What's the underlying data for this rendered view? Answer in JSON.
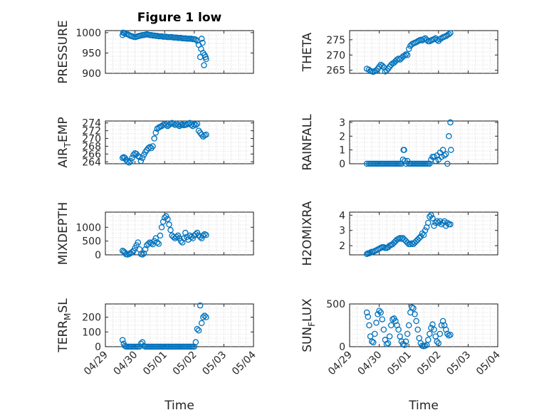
{
  "figure": {
    "title": "Figure 1 low",
    "xlabel": "Time",
    "marker_color": "#0072BD"
  },
  "chart_data": [
    {
      "type": "scatter",
      "ylabel": "PRESSURE",
      "yticks": [
        "900",
        "950",
        "1000"
      ],
      "ylim": [
        900,
        1005
      ],
      "grid": true,
      "x_day": [
        0.58,
        0.6,
        0.62,
        0.65,
        0.7,
        0.75,
        0.8,
        0.85,
        0.9,
        0.95,
        1.0,
        1.05,
        1.1,
        1.15,
        1.2,
        1.25,
        1.3,
        1.35,
        1.4,
        1.45,
        1.5,
        1.55,
        1.6,
        1.65,
        1.7,
        1.75,
        1.8,
        1.85,
        1.9,
        1.95,
        2.0,
        2.05,
        2.1,
        2.15,
        2.2,
        2.25,
        2.3,
        2.35,
        2.4,
        2.45,
        2.5,
        2.55,
        2.6,
        2.65,
        2.7,
        2.75,
        2.8,
        2.85,
        2.9,
        2.95,
        3.0,
        3.05,
        3.1,
        3.15,
        3.2,
        3.23,
        3.25,
        3.28,
        3.3,
        3.33,
        3.35,
        3.38,
        3.4
      ],
      "y": [
        994,
        1000,
        999,
        998,
        997,
        996,
        994,
        992,
        991,
        990,
        989,
        990,
        991,
        992,
        993,
        994,
        994,
        995,
        996,
        995,
        994,
        994,
        993,
        993,
        992,
        992,
        991,
        991,
        991,
        990,
        990,
        990,
        989,
        989,
        989,
        989,
        988,
        988,
        988,
        987,
        987,
        987,
        986,
        986,
        986,
        985,
        985,
        985,
        985,
        984,
        984,
        983,
        980,
        970,
        940,
        960,
        985,
        975,
        950,
        920,
        945,
        940,
        935
      ]
    },
    {
      "type": "scatter",
      "ylabel": "THETA",
      "yticks": [
        "265",
        "270",
        "275"
      ],
      "ylim": [
        264,
        278
      ],
      "grid": true,
      "x_day": [
        0.58,
        0.65,
        0.7,
        0.75,
        0.8,
        0.85,
        0.9,
        0.95,
        1.0,
        1.05,
        1.1,
        1.15,
        1.2,
        1.25,
        1.3,
        1.35,
        1.4,
        1.45,
        1.5,
        1.55,
        1.6,
        1.65,
        1.7,
        1.75,
        1.8,
        1.85,
        1.9,
        1.95,
        2.0,
        2.05,
        2.1,
        2.15,
        2.2,
        2.25,
        2.3,
        2.35,
        2.4,
        2.45,
        2.5,
        2.55,
        2.6,
        2.65,
        2.7,
        2.75,
        2.8,
        2.85,
        2.9,
        2.95,
        3.0,
        3.05,
        3.1,
        3.15,
        3.2,
        3.25,
        3.3,
        3.35,
        3.4
      ],
      "y": [
        265.5,
        265.2,
        264.8,
        264.6,
        264.5,
        264.7,
        265.0,
        265.5,
        266.2,
        266.8,
        266.5,
        266.0,
        264.6,
        265.0,
        265.5,
        266.2,
        266.8,
        267.2,
        267.5,
        268.0,
        268.5,
        268.8,
        268.5,
        269.0,
        269.5,
        269.8,
        270.2,
        270.0,
        272.0,
        273.0,
        273.5,
        273.8,
        274.0,
        274.2,
        274.5,
        274.8,
        275.0,
        274.8,
        275.2,
        275.5,
        275.0,
        274.5,
        274.5,
        274.8,
        275.0,
        275.2,
        275.5,
        275.0,
        274.6,
        275.2,
        275.5,
        275.8,
        276.0,
        276.2,
        276.5,
        276.8,
        277.2
      ]
    },
    {
      "type": "scatter",
      "ylabel_main": "AIR",
      "ylabel_sub": "T",
      "ylabel_tail": "EMP",
      "yticks": [
        "264",
        "266",
        "268",
        "270",
        "272",
        "274"
      ],
      "ylim": [
        263.5,
        274.5
      ],
      "grid": true,
      "x_day": [
        0.58,
        0.62,
        0.66,
        0.7,
        0.75,
        0.8,
        0.85,
        0.9,
        0.95,
        1.0,
        1.05,
        1.1,
        1.15,
        1.2,
        1.25,
        1.3,
        1.35,
        1.4,
        1.45,
        1.5,
        1.55,
        1.6,
        1.65,
        1.7,
        1.75,
        1.8,
        1.85,
        1.9,
        1.95,
        2.0,
        2.05,
        2.1,
        2.15,
        2.2,
        2.25,
        2.3,
        2.35,
        2.4,
        2.45,
        2.5,
        2.55,
        2.6,
        2.65,
        2.7,
        2.75,
        2.8,
        2.85,
        2.9,
        2.95,
        3.0,
        3.05,
        3.1,
        3.15,
        3.2,
        3.25,
        3.3,
        3.35,
        3.4
      ],
      "y": [
        265,
        265.2,
        265,
        264.5,
        264,
        263.8,
        264.2,
        265,
        265.8,
        266.2,
        266,
        265.5,
        265.2,
        264.2,
        265,
        265.8,
        266.5,
        267,
        267.5,
        267.8,
        267.5,
        268,
        270,
        271.5,
        272.5,
        272.8,
        273,
        273.2,
        273.5,
        273.8,
        273.5,
        273.2,
        273.5,
        273.8,
        274,
        273.8,
        273.5,
        273.8,
        273.5,
        273.2,
        273.5,
        273.6,
        273.4,
        273.5,
        273.6,
        273.8,
        274,
        273.5,
        273.2,
        273.6,
        273.5,
        273.8,
        272,
        271.5,
        271,
        270.5,
        270.8,
        271
      ]
    },
    {
      "type": "scatter",
      "ylabel": "RAINFALL",
      "yticks": [
        "0",
        "1",
        "2",
        "3"
      ],
      "ylim": [
        0,
        3.1
      ],
      "grid": true,
      "x_day": [
        0.58,
        0.65,
        0.7,
        0.75,
        0.8,
        0.85,
        0.9,
        0.95,
        1.0,
        1.05,
        1.1,
        1.15,
        1.2,
        1.25,
        1.3,
        1.35,
        1.4,
        1.45,
        1.5,
        1.55,
        1.6,
        1.65,
        1.7,
        1.75,
        1.8,
        1.82,
        1.84,
        1.86,
        1.9,
        1.95,
        2.0,
        2.05,
        2.1,
        2.15,
        2.2,
        2.25,
        2.3,
        2.35,
        2.4,
        2.45,
        2.5,
        2.55,
        2.6,
        2.65,
        2.7,
        2.75,
        2.8,
        2.85,
        2.9,
        2.95,
        3.0,
        3.05,
        3.1,
        3.15,
        3.2,
        3.25,
        3.3,
        3.35,
        3.4,
        3.42
      ],
      "y": [
        0,
        0,
        0,
        0,
        0,
        0,
        0,
        0,
        0,
        0,
        0,
        0,
        0,
        0,
        0,
        0,
        0,
        0,
        0,
        0,
        0,
        0,
        0,
        0,
        0.3,
        1.0,
        1.0,
        0.2,
        0,
        0.2,
        0,
        0,
        0,
        0,
        0,
        0,
        0,
        0,
        0,
        0,
        0,
        0,
        0,
        0,
        0,
        0.3,
        0.5,
        0.5,
        0.2,
        0.6,
        0.3,
        0.8,
        0.5,
        1.0,
        0.6,
        0.7,
        0,
        2.0,
        3.0,
        1.0
      ]
    },
    {
      "type": "scatter",
      "ylabel": "MIXDEPTH",
      "yticks": [
        "0",
        "500",
        "1000"
      ],
      "ylim": [
        0,
        1550
      ],
      "grid": true,
      "x_day": [
        0.58,
        0.62,
        0.66,
        0.7,
        0.75,
        0.8,
        0.85,
        0.9,
        0.95,
        1.0,
        1.05,
        1.1,
        1.15,
        1.2,
        1.25,
        1.3,
        1.35,
        1.4,
        1.45,
        1.5,
        1.55,
        1.6,
        1.65,
        1.7,
        1.75,
        1.8,
        1.85,
        1.9,
        1.95,
        2.0,
        2.05,
        2.1,
        2.15,
        2.2,
        2.25,
        2.3,
        2.35,
        2.4,
        2.45,
        2.5,
        2.55,
        2.6,
        2.65,
        2.7,
        2.75,
        2.8,
        2.85,
        2.9,
        2.95,
        3.0,
        3.05,
        3.1,
        3.15,
        3.2,
        3.25,
        3.3,
        3.35,
        3.4
      ],
      "y": [
        150,
        120,
        80,
        20,
        10,
        30,
        60,
        100,
        150,
        250,
        350,
        450,
        200,
        30,
        10,
        50,
        200,
        350,
        400,
        450,
        420,
        380,
        500,
        600,
        450,
        400,
        700,
        1000,
        1200,
        1350,
        1400,
        1300,
        1100,
        900,
        700,
        650,
        600,
        650,
        700,
        600,
        500,
        450,
        600,
        800,
        650,
        550,
        700,
        650,
        600,
        700,
        750,
        800,
        700,
        650,
        600,
        700,
        750,
        720
      ]
    },
    {
      "type": "scatter",
      "ylabel": "H2OMIXRA",
      "yticks": [
        "2",
        "3",
        "4"
      ],
      "ylim": [
        1.4,
        4.2
      ],
      "grid": true,
      "x_day": [
        0.58,
        0.62,
        0.66,
        0.7,
        0.75,
        0.8,
        0.85,
        0.9,
        0.95,
        1.0,
        1.05,
        1.1,
        1.15,
        1.2,
        1.25,
        1.3,
        1.35,
        1.4,
        1.45,
        1.5,
        1.55,
        1.6,
        1.65,
        1.7,
        1.75,
        1.8,
        1.85,
        1.9,
        1.95,
        2.0,
        2.05,
        2.1,
        2.15,
        2.2,
        2.25,
        2.3,
        2.35,
        2.4,
        2.45,
        2.5,
        2.55,
        2.6,
        2.65,
        2.7,
        2.75,
        2.8,
        2.85,
        2.9,
        2.95,
        3.0,
        3.05,
        3.1,
        3.15,
        3.2,
        3.25,
        3.3,
        3.35,
        3.4
      ],
      "y": [
        1.45,
        1.5,
        1.5,
        1.55,
        1.6,
        1.6,
        1.65,
        1.7,
        1.75,
        1.8,
        1.85,
        1.9,
        1.9,
        1.85,
        1.85,
        1.9,
        2.0,
        2.05,
        2.1,
        2.2,
        2.3,
        2.4,
        2.45,
        2.5,
        2.45,
        2.5,
        2.4,
        2.3,
        2.2,
        2.1,
        2.1,
        2.15,
        2.1,
        2.2,
        2.3,
        2.4,
        2.5,
        2.6,
        2.8,
        2.7,
        3.0,
        3.2,
        3.5,
        3.9,
        4.0,
        3.8,
        3.3,
        3.5,
        3.6,
        3.5,
        3.6,
        3.4,
        3.5,
        3.6,
        3.3,
        3.5,
        3.4,
        3.4
      ]
    },
    {
      "type": "scatter",
      "ylabel_main": "TERR",
      "ylabel_sub": "M",
      "ylabel_tail": "SL",
      "yticks": [
        "0",
        "100",
        "200"
      ],
      "ylim": [
        0,
        290
      ],
      "grid": true,
      "x_day": [
        0.58,
        0.62,
        0.66,
        0.7,
        0.75,
        0.8,
        0.85,
        0.9,
        0.95,
        1.0,
        1.05,
        1.1,
        1.15,
        1.2,
        1.25,
        1.3,
        1.35,
        1.4,
        1.45,
        1.5,
        1.55,
        1.6,
        1.65,
        1.7,
        1.75,
        1.8,
        1.85,
        1.9,
        1.95,
        2.0,
        2.05,
        2.1,
        2.15,
        2.2,
        2.25,
        2.3,
        2.35,
        2.4,
        2.45,
        2.5,
        2.55,
        2.6,
        2.65,
        2.7,
        2.75,
        2.8,
        2.85,
        2.9,
        2.95,
        3.0,
        3.05,
        3.1,
        3.15,
        3.2,
        3.25,
        3.3,
        3.35,
        3.4
      ],
      "y": [
        45,
        20,
        5,
        0,
        0,
        0,
        0,
        0,
        0,
        0,
        0,
        0,
        0,
        20,
        30,
        5,
        0,
        0,
        0,
        0,
        0,
        0,
        0,
        0,
        0,
        0,
        0,
        0,
        0,
        0,
        0,
        0,
        0,
        0,
        0,
        0,
        0,
        0,
        0,
        0,
        0,
        0,
        0,
        0,
        0,
        0,
        0,
        0,
        0,
        0,
        30,
        120,
        110,
        280,
        160,
        200,
        210,
        200
      ]
    },
    {
      "type": "scatter",
      "ylabel_main": "SUN",
      "ylabel_sub": "F",
      "ylabel_tail": "LUX",
      "yticks": [
        "0",
        "500"
      ],
      "ylim": [
        0,
        500
      ],
      "grid": true,
      "x_day": [
        0.58,
        0.62,
        0.66,
        0.7,
        0.75,
        0.8,
        0.85,
        0.9,
        0.95,
        1.0,
        1.05,
        1.1,
        1.15,
        1.2,
        1.25,
        1.3,
        1.35,
        1.4,
        1.45,
        1.5,
        1.55,
        1.6,
        1.65,
        1.7,
        1.75,
        1.8,
        1.85,
        1.9,
        1.95,
        2.0,
        2.05,
        2.1,
        2.15,
        2.2,
        2.25,
        2.3,
        2.35,
        2.4,
        2.45,
        2.5,
        2.55,
        2.6,
        2.65,
        2.7,
        2.75,
        2.8,
        2.85,
        2.9,
        2.95,
        3.0,
        3.05,
        3.1,
        3.15,
        3.2,
        3.25,
        3.3,
        3.35,
        3.4
      ],
      "y": [
        400,
        350,
        250,
        120,
        60,
        50,
        150,
        280,
        380,
        420,
        400,
        320,
        200,
        80,
        30,
        40,
        120,
        250,
        320,
        330,
        300,
        250,
        200,
        120,
        60,
        30,
        20,
        60,
        150,
        250,
        400,
        460,
        450,
        380,
        300,
        200,
        100,
        40,
        10,
        5,
        10,
        20,
        80,
        150,
        220,
        260,
        200,
        120,
        60,
        40,
        150,
        250,
        300,
        250,
        200,
        150,
        130,
        140
      ]
    }
  ],
  "x_axis": {
    "tick_labels": [
      "04/29",
      "04/30",
      "05/01",
      "05/02",
      "05/03",
      "05/04"
    ]
  }
}
